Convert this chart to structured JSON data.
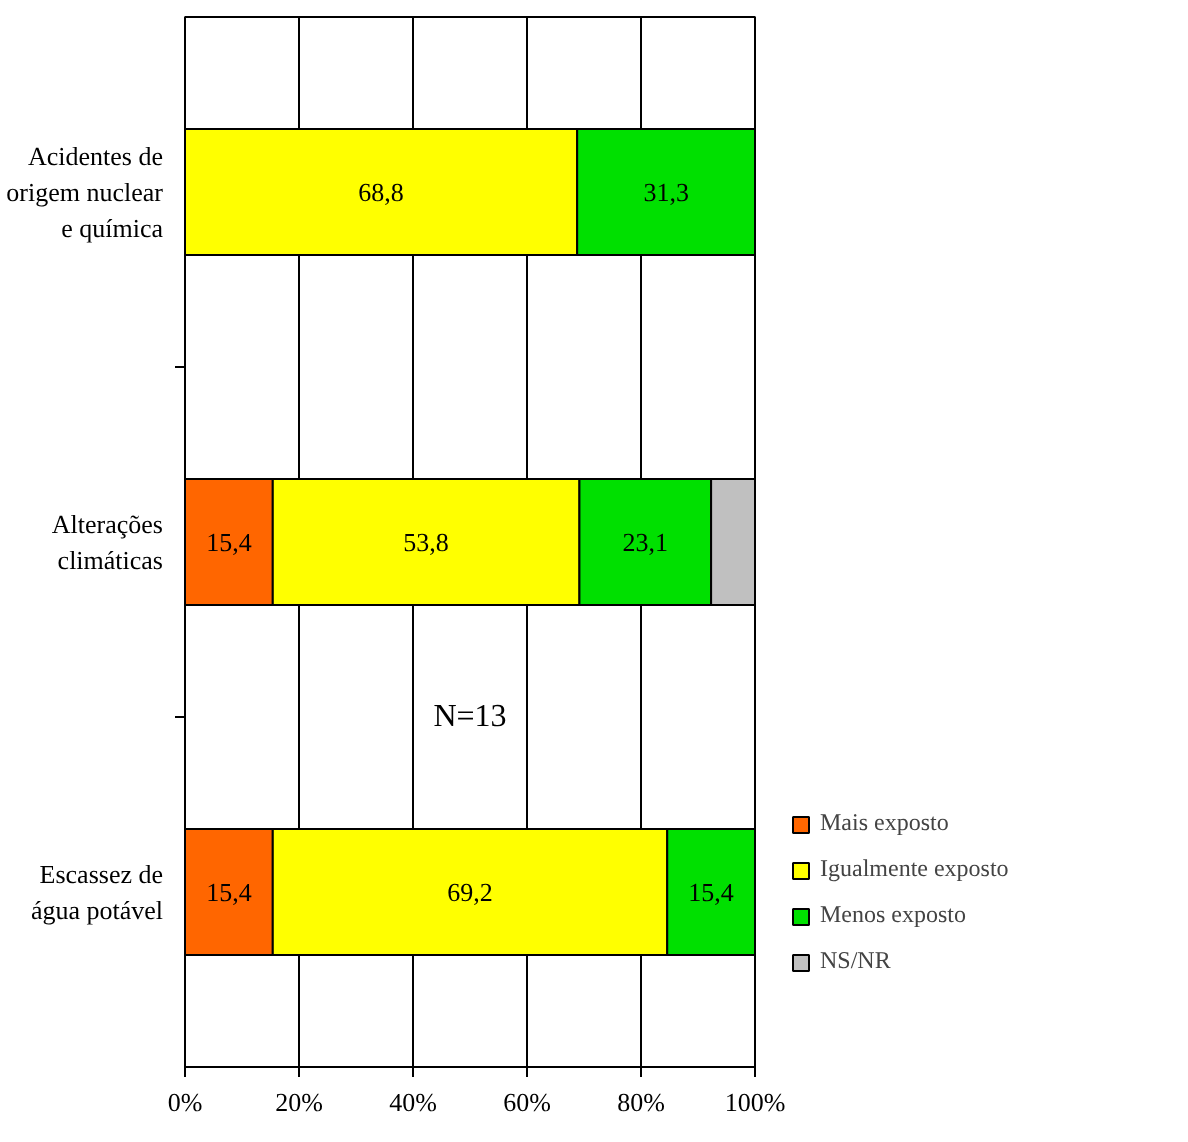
{
  "chart_data": {
    "type": "bar",
    "orientation": "horizontal",
    "stacked": true,
    "categories": [
      "Acidentes de origem nuclear e química",
      "Alterações climáticas",
      "Escassez de água potável"
    ],
    "series": [
      {
        "name": "Mais exposto",
        "color": "#ff6600",
        "values": [
          null,
          15.4,
          15.4
        ],
        "value_labels": [
          null,
          "15,4",
          "15,4"
        ]
      },
      {
        "name": "Igualmente exposto",
        "color": "#ffff00",
        "values": [
          68.8,
          53.8,
          69.2
        ],
        "value_labels": [
          "68,8",
          "53,8",
          "69,2"
        ]
      },
      {
        "name": "Menos exposto",
        "color": "#00e000",
        "values": [
          31.3,
          23.1,
          15.4
        ],
        "value_labels": [
          "31,3",
          "23,1",
          "15,4"
        ]
      },
      {
        "name": "NS/NR",
        "color": "#c0c0c0",
        "values": [
          null,
          7.7,
          null
        ],
        "value_labels": [
          null,
          null,
          null
        ]
      }
    ],
    "xlim": [
      0,
      100
    ],
    "xticks": [
      {
        "value": 0,
        "label": "0%"
      },
      {
        "value": 20,
        "label": "20%"
      },
      {
        "value": 40,
        "label": "40%"
      },
      {
        "value": 60,
        "label": "60%"
      },
      {
        "value": 80,
        "label": "80%"
      },
      {
        "value": 100,
        "label": "100%"
      }
    ],
    "annotations": [
      "N=13"
    ],
    "grid": "x",
    "legend": "right"
  }
}
